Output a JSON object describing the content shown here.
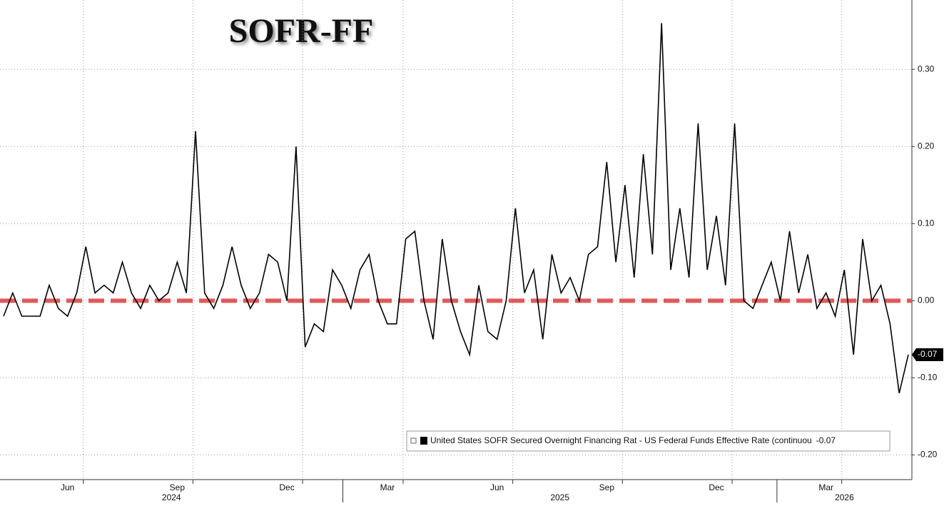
{
  "chart_data": {
    "type": "line",
    "title": "SOFR-FF",
    "categories": [
      null,
      null,
      null,
      null,
      null,
      null,
      null,
      "Jun",
      null,
      null,
      null,
      null,
      null,
      null,
      null,
      null,
      null,
      null,
      null,
      "Sep",
      null,
      null,
      null,
      null,
      null,
      null,
      null,
      null,
      null,
      null,
      null,
      "Dec",
      null,
      null,
      null,
      null,
      null,
      null,
      null,
      null,
      null,
      null,
      "Mar",
      null,
      null,
      null,
      null,
      null,
      null,
      null,
      null,
      null,
      null,
      null,
      "Jun",
      null,
      null,
      null,
      null,
      null,
      null,
      null,
      null,
      null,
      null,
      null,
      "Sep",
      null,
      null,
      null,
      null,
      null,
      null,
      null,
      null,
      null,
      null,
      null,
      "Dec",
      null,
      null,
      null,
      null,
      null,
      null,
      null,
      null,
      null,
      null,
      null,
      "Mar",
      null,
      null,
      null,
      null,
      null,
      null,
      null,
      null,
      null
    ],
    "years": [
      "2024",
      "2025",
      "2026"
    ],
    "series": [
      {
        "name": "United States SOFR Secured Overnight Financing Rat - US Federal Funds Effective Rate (continuou",
        "color": "#000000",
        "values": [
          -0.02,
          0.01,
          -0.02,
          -0.02,
          -0.02,
          0.02,
          -0.01,
          -0.02,
          0.01,
          0.07,
          0.01,
          0.02,
          0.01,
          0.05,
          0.01,
          -0.01,
          0.02,
          0.0,
          0.01,
          0.05,
          0.01,
          0.22,
          0.01,
          -0.01,
          0.02,
          0.07,
          0.02,
          -0.01,
          0.01,
          0.06,
          0.05,
          0.0,
          0.2,
          -0.06,
          -0.03,
          -0.04,
          0.04,
          0.02,
          -0.01,
          0.04,
          0.06,
          0.0,
          -0.03,
          -0.03,
          0.08,
          0.09,
          0.0,
          -0.05,
          0.08,
          0.0,
          -0.04,
          -0.07,
          0.02,
          -0.04,
          -0.05,
          0.0,
          0.12,
          0.01,
          0.04,
          -0.05,
          0.06,
          0.01,
          0.03,
          0.0,
          0.06,
          0.07,
          0.18,
          0.05,
          0.15,
          0.03,
          0.19,
          0.06,
          0.36,
          0.04,
          0.12,
          0.03,
          0.23,
          0.04,
          0.11,
          0.02,
          0.23,
          0.0,
          -0.01,
          0.02,
          0.05,
          0.0,
          0.09,
          0.01,
          0.06,
          -0.01,
          0.01,
          -0.02,
          0.04,
          -0.07,
          0.08,
          0.0,
          0.02,
          -0.03,
          -0.12,
          -0.07
        ]
      }
    ],
    "ylim": [
      -0.232,
      0.39
    ],
    "yticks": [
      {
        "value": -0.2,
        "label": "-0.20"
      },
      {
        "value": -0.1,
        "label": "-0.10"
      },
      {
        "value": 0,
        "label": "0.00"
      },
      {
        "value": 0.1,
        "label": "0.10"
      },
      {
        "value": 0.2,
        "label": "0.20"
      },
      {
        "value": 0.3,
        "label": "0.30"
      }
    ],
    "reference_line": {
      "value": 0,
      "color": "#e05a5a"
    },
    "grid": true
  }
}
